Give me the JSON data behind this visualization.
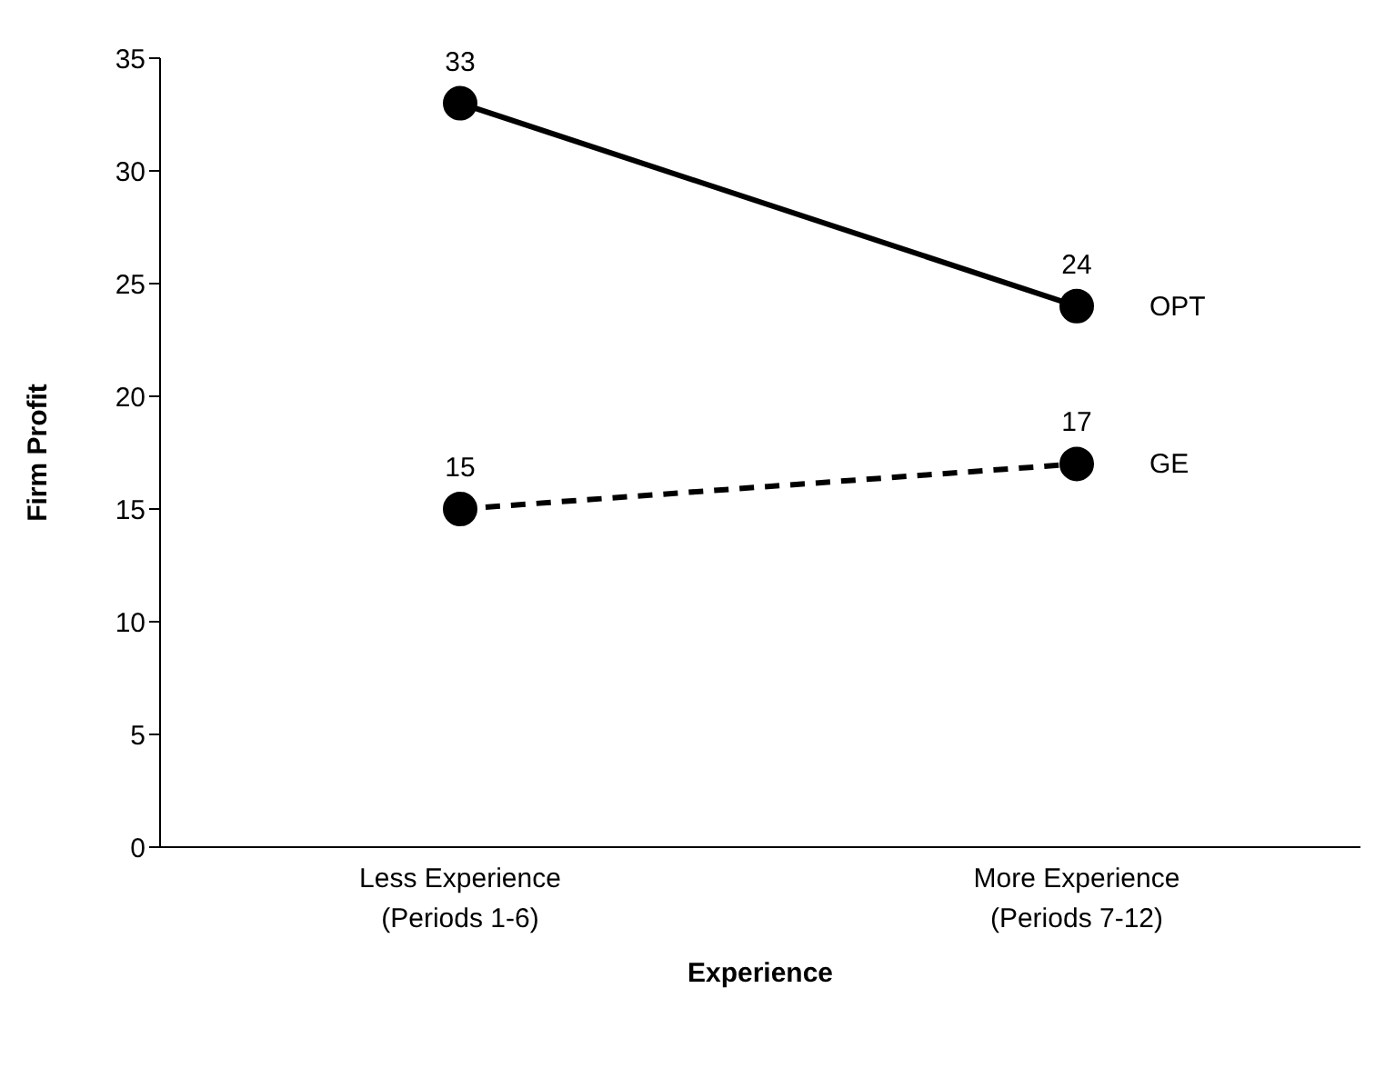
{
  "chart_data": {
    "type": "line",
    "xlabel": "Experience",
    "ylabel": "Firm Profit",
    "categories": [
      "Less Experience\n(Periods 1-6)",
      "More Experience\n(Periods 7-12)"
    ],
    "series": [
      {
        "name": "OPT",
        "color": "#000000",
        "values": [
          33,
          24
        ],
        "line_style": "solid"
      },
      {
        "name": "GE",
        "color": "#000000",
        "values": [
          15,
          17
        ],
        "line_style": "dashed"
      }
    ],
    "ylim": [
      0,
      35
    ],
    "yticks": [
      0,
      5,
      10,
      15,
      20,
      25,
      30,
      35
    ],
    "data_labels": true,
    "marker": "circle",
    "legend": false,
    "grid": false
  }
}
